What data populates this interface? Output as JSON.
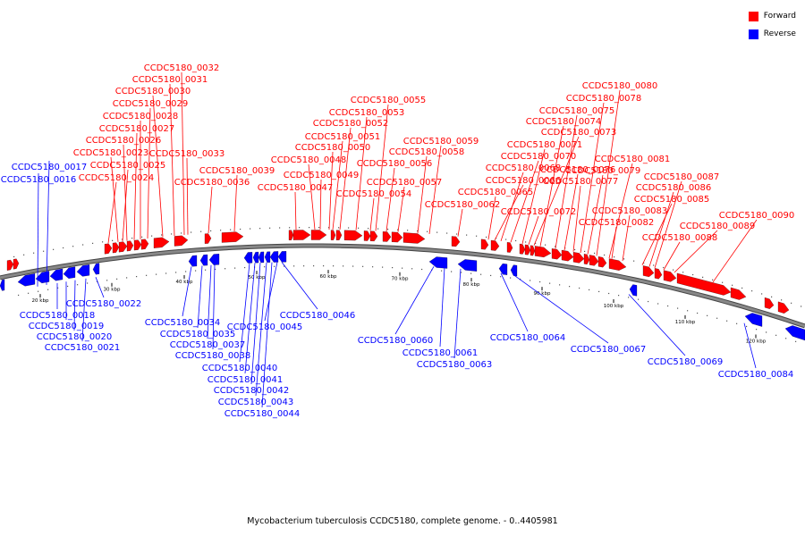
{
  "caption": "Mycobacterium tuberculosis CCDC5180, complete genome. - 0..4405981",
  "legend": [
    {
      "label": "Forward",
      "color": "#ff0000"
    },
    {
      "label": "Reverse",
      "color": "#0000ff"
    }
  ],
  "colors": {
    "forward": "#ff0000",
    "reverse": "#0000ff",
    "backbone": "#888888"
  },
  "chart_data": {
    "type": "genome-map",
    "scale_ticks": [
      "20 kbp",
      "30 kbp",
      "40 kbp",
      "50 kbp",
      "60 kbp",
      "70 kbp",
      "80 kbp",
      "90 kbp",
      "100 kbp",
      "110 kbp",
      "120 kbp"
    ],
    "forward_genes": [
      "CCDC5180_0023",
      "CCDC5180_0024",
      "CCDC5180_0025",
      "CCDC5180_0026",
      "CCDC5180_0027",
      "CCDC5180_0028",
      "CCDC5180_0029",
      "CCDC5180_0030",
      "CCDC5180_0031",
      "CCDC5180_0032",
      "CCDC5180_0033",
      "CCDC5180_0036",
      "CCDC5180_0039",
      "CCDC5180_0047",
      "CCDC5180_0048",
      "CCDC5180_0049",
      "CCDC5180_0050",
      "CCDC5180_0051",
      "CCDC5180_0052",
      "CCDC5180_0053",
      "CCDC5180_0054",
      "CCDC5180_0055",
      "CCDC5180_0056",
      "CCDC5180_0057",
      "CCDC5180_0058",
      "CCDC5180_0059",
      "CCDC5180_0062",
      "CCDC5180_0065",
      "CCDC5180_0066",
      "CCDC5180_0068",
      "CCDC5180_0070",
      "CCDC5180_0071",
      "CCDC5180_0072",
      "CCDC5180_0073",
      "CCDC5180_0074",
      "CCDC5180_0075",
      "CCDC5180_0076",
      "CCDC5180_0077",
      "CCDC5180_0078",
      "CCDC5180_0079",
      "CCDC5180_0080",
      "CCDC5180_0081",
      "CCDC5180_0082",
      "CCDC5180_0083",
      "CCDC5180_0085",
      "CCDC5180_0086",
      "CCDC5180_0087",
      "CCDC5180_0088",
      "CCDC5180_0089",
      "CCDC5180_0090"
    ],
    "reverse_genes": [
      "CCDC5180_0016",
      "CCDC5180_0017",
      "CCDC5180_0018",
      "CCDC5180_0019",
      "CCDC5180_0020",
      "CCDC5180_0021",
      "CCDC5180_0022",
      "CCDC5180_0034",
      "CCDC5180_0035",
      "CCDC5180_0037",
      "CCDC5180_0038",
      "CCDC5180_0040",
      "CCDC5180_0041",
      "CCDC5180_0042",
      "CCDC5180_0043",
      "CCDC5180_0044",
      "CCDC5180_0045",
      "CCDC5180_0046",
      "CCDC5180_0060",
      "CCDC5180_0061",
      "CCDC5180_0063",
      "CCDC5180_0064",
      "CCDC5180_0067",
      "CCDC5180_0069",
      "CCDC5180_0084"
    ]
  }
}
